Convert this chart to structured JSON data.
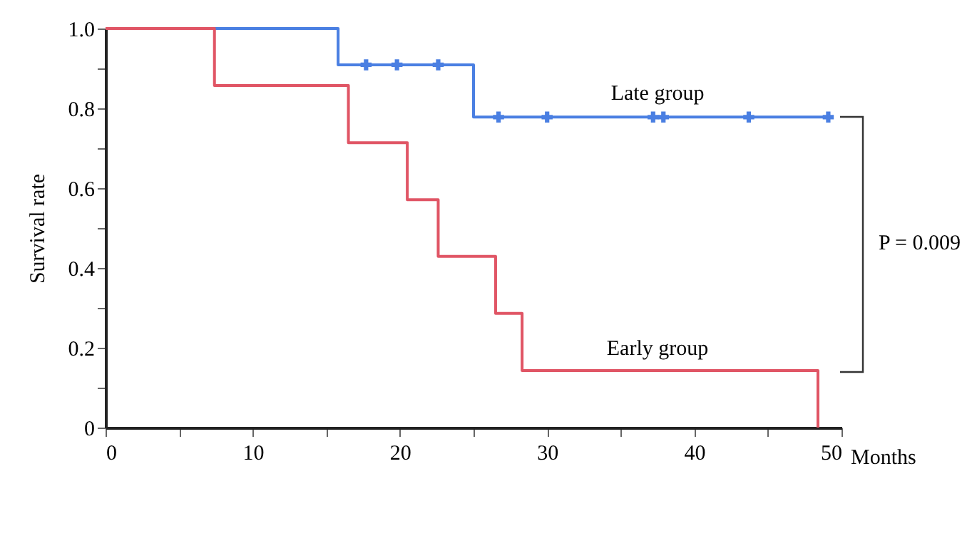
{
  "chart_data": {
    "type": "step",
    "xlabel": "Months",
    "ylabel": "Survival rate",
    "xlim": [
      0,
      50
    ],
    "ylim": [
      0,
      1
    ],
    "xticks": [
      0,
      {
        "value": 5,
        "label": null
      },
      10,
      {
        "value": 15,
        "label": null
      },
      20,
      {
        "value": 25,
        "label": null
      },
      30,
      {
        "value": 35,
        "label": null
      },
      40,
      {
        "value": 45,
        "label": null
      },
      50
    ],
    "yticks": [
      0,
      {
        "value": 0.1,
        "label": null
      },
      0.2,
      {
        "value": 0.3,
        "label": null
      },
      0.4,
      {
        "value": 0.5,
        "label": null
      },
      0.6,
      {
        "value": 0.7,
        "label": null
      },
      0.8,
      {
        "value": 0.9,
        "label": null
      },
      {
        "value": 1,
        "label": "1.0"
      }
    ],
    "grid": false,
    "series": [
      {
        "color": "#4a7fe2",
        "x": [
          0,
          15.8,
          25,
          49.1
        ],
        "values": [
          1,
          0.909,
          0.778,
          0.778
        ]
      },
      {
        "color": "#e05565",
        "x": [
          0,
          7.4,
          16.5,
          20.5,
          22.6,
          26.5,
          28.3,
          48.4
        ],
        "values": [
          1,
          0.857,
          0.714,
          0.571,
          0.429,
          0.286,
          0.143,
          0
        ]
      },
      {
        "type": "scatter",
        "marker": "cross",
        "color": "#4a7fe2",
        "x": [
          17.7,
          19.8,
          22.6,
          26.7,
          30,
          37.2,
          37.9,
          43.7,
          49.1
        ],
        "values": [
          0.909,
          0.909,
          0.909,
          0.778,
          0.778,
          0.778,
          0.778,
          0.778,
          0.778
        ]
      }
    ],
    "annotations": [
      {
        "text": "Late group",
        "x": 37.5,
        "y": 0.8
      },
      {
        "text": "Early group",
        "x": 37.5,
        "y": 0.16
      },
      "P = 0.009"
    ]
  }
}
